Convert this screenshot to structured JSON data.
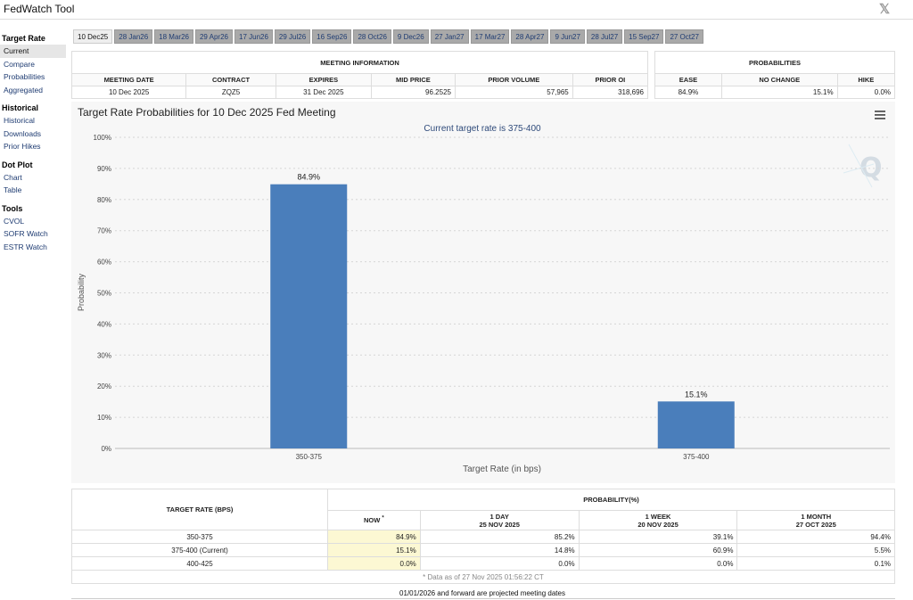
{
  "app": {
    "title": "FedWatch Tool",
    "share_icon": "x-logo-icon",
    "share_glyph": "𝕏"
  },
  "sidebar": {
    "sections": [
      {
        "heading": "Target Rate",
        "items": [
          "Current",
          "Compare",
          "Probabilities",
          "Aggregated"
        ],
        "active": "Current"
      },
      {
        "heading": "Historical",
        "items": [
          "Historical",
          "Downloads",
          "Prior Hikes"
        ]
      },
      {
        "heading": "Dot Plot",
        "items": [
          "Chart",
          "Table"
        ]
      },
      {
        "heading": "Tools",
        "items": [
          "CVOL",
          "SOFR Watch",
          "ESTR Watch"
        ]
      }
    ]
  },
  "meeting_tabs": [
    "10 Dec25",
    "28 Jan26",
    "18 Mar26",
    "29 Apr26",
    "17 Jun26",
    "29 Jul26",
    "16 Sep26",
    "28 Oct26",
    "9 Dec26",
    "27 Jan27",
    "17 Mar27",
    "28 Apr27",
    "9 Jun27",
    "28 Jul27",
    "15 Sep27",
    "27 Oct27"
  ],
  "active_tab": "10 Dec25",
  "meeting_info": {
    "heading": "MEETING INFORMATION",
    "columns": [
      "MEETING DATE",
      "CONTRACT",
      "EXPIRES",
      "MID PRICE",
      "PRIOR VOLUME",
      "PRIOR OI"
    ],
    "values": [
      "10 Dec 2025",
      "ZQZ5",
      "31 Dec 2025",
      "96.2525",
      "57,965",
      "318,696"
    ]
  },
  "probabilities": {
    "heading": "PROBABILITIES",
    "columns": [
      "EASE",
      "NO CHANGE",
      "HIKE"
    ],
    "values": [
      "84.9%",
      "15.1%",
      "0.0%"
    ]
  },
  "chart_data": {
    "type": "bar",
    "title": "Target Rate Probabilities for 10 Dec 2025 Fed Meeting",
    "subtitle": "Current target rate is 375-400",
    "categories": [
      "350-375",
      "375-400"
    ],
    "values": [
      84.9,
      15.1
    ],
    "data_labels": [
      "84.9%",
      "15.1%"
    ],
    "xlabel": "Target Rate (in bps)",
    "ylabel": "Probability",
    "ylim": [
      0,
      100
    ],
    "yticks": [
      "0%",
      "10%",
      "20%",
      "30%",
      "40%",
      "50%",
      "60%",
      "70%",
      "80%",
      "90%",
      "100%"
    ],
    "grid": true,
    "bar_color": "#4a7ebb",
    "menu_icon": "hamburger-menu-icon",
    "watermark_icon": "q-logo-icon"
  },
  "rate_table": {
    "col_rate": "TARGET RATE (BPS)",
    "group_heading": "PROBABILITY(%)",
    "periods": [
      {
        "label": "NOW",
        "marker": "*",
        "date": ""
      },
      {
        "label": "1 DAY",
        "date": "25 NOV 2025"
      },
      {
        "label": "1 WEEK",
        "date": "20 NOV 2025"
      },
      {
        "label": "1 MONTH",
        "date": "27 OCT 2025"
      }
    ],
    "rows": [
      {
        "rate": "350-375",
        "values": [
          "84.9%",
          "85.2%",
          "39.1%",
          "94.4%"
        ]
      },
      {
        "rate": "375-400 (Current)",
        "values": [
          "15.1%",
          "14.8%",
          "60.9%",
          "5.5%"
        ]
      },
      {
        "rate": "400-425",
        "values": [
          "0.0%",
          "0.0%",
          "0.0%",
          "0.1%"
        ]
      }
    ],
    "note": "* Data as of 27 Nov 2025 01:56:22 CT"
  },
  "footer": "01/01/2026 and forward are projected meeting dates",
  "colors": {
    "now_highlight": "#fcf8d3",
    "link": "#1f3c72",
    "tab_bg": "#a9a9a9"
  }
}
